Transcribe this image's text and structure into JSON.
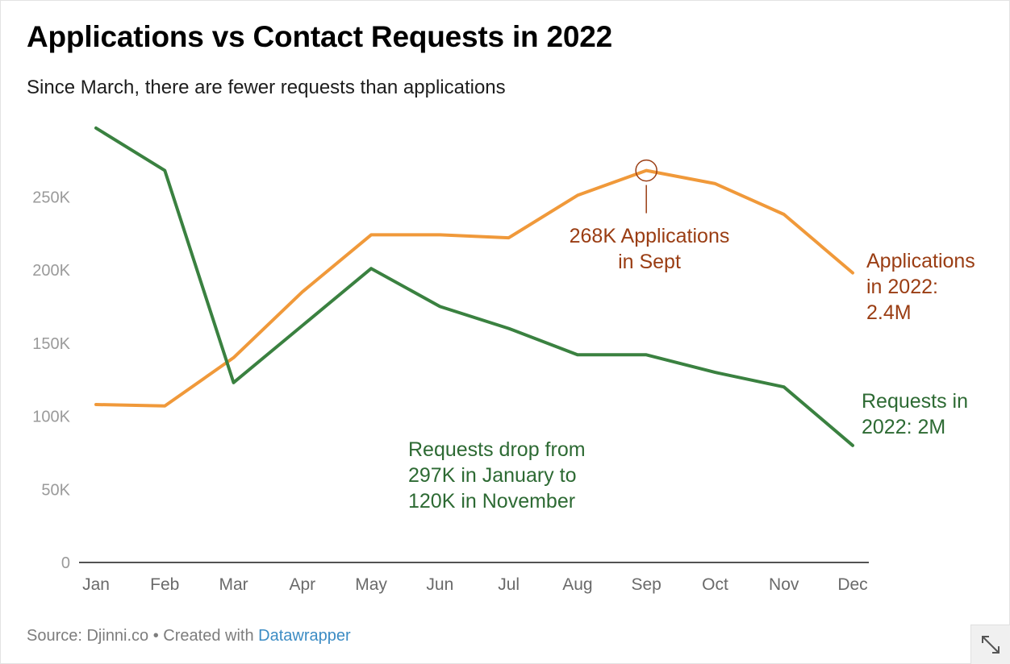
{
  "title": "Applications vs Contact Requests in 2022",
  "subtitle": "Since March, there are fewer requests than applications",
  "footer": {
    "source_label": "Source: Djinni.co • Created with ",
    "tool_label": "Datawrapper"
  },
  "expand_icon": "expand-diagonal-arrows",
  "chart_data": {
    "type": "line",
    "title": "Applications vs Contact Requests in 2022",
    "subtitle": "Since March, there are fewer requests than applications",
    "categories": [
      "Jan",
      "Feb",
      "Mar",
      "Apr",
      "May",
      "Jun",
      "Jul",
      "Aug",
      "Sep",
      "Oct",
      "Nov",
      "Dec"
    ],
    "ylim": [
      0,
      300000
    ],
    "yticks": [
      0,
      50000,
      100000,
      150000,
      200000,
      250000
    ],
    "ytick_labels": [
      "0",
      "50K",
      "100K",
      "150K",
      "200K",
      "250K"
    ],
    "grid": false,
    "series": [
      {
        "key": "applications",
        "color": "#f0993a",
        "values": [
          108000,
          107000,
          140000,
          185000,
          224000,
          224000,
          222000,
          251000,
          268000,
          259000,
          238000,
          198000
        ]
      },
      {
        "key": "requests",
        "color": "#3a8140",
        "values": [
          297000,
          268000,
          123000,
          162000,
          201000,
          175000,
          160000,
          142000,
          142000,
          130000,
          120000,
          80000
        ]
      }
    ],
    "annotations": [
      {
        "key": "peak",
        "series": "applications",
        "index": 8,
        "color": "#9a3d13",
        "lines": [
          "268K Applications",
          "in Sept"
        ]
      },
      {
        "key": "applications_total",
        "series": "applications",
        "color": "#9a3d13",
        "lines": [
          "Applications",
          "in 2022:",
          "2.4M"
        ]
      },
      {
        "key": "requests_total",
        "series": "requests",
        "color": "#2d6a33",
        "lines": [
          "Requests in",
          "2022: 2M"
        ]
      },
      {
        "key": "requests_drop",
        "series": "requests",
        "color": "#2d6a33",
        "lines": [
          "Requests drop from",
          "297K in January to",
          "120K in November"
        ]
      }
    ]
  }
}
